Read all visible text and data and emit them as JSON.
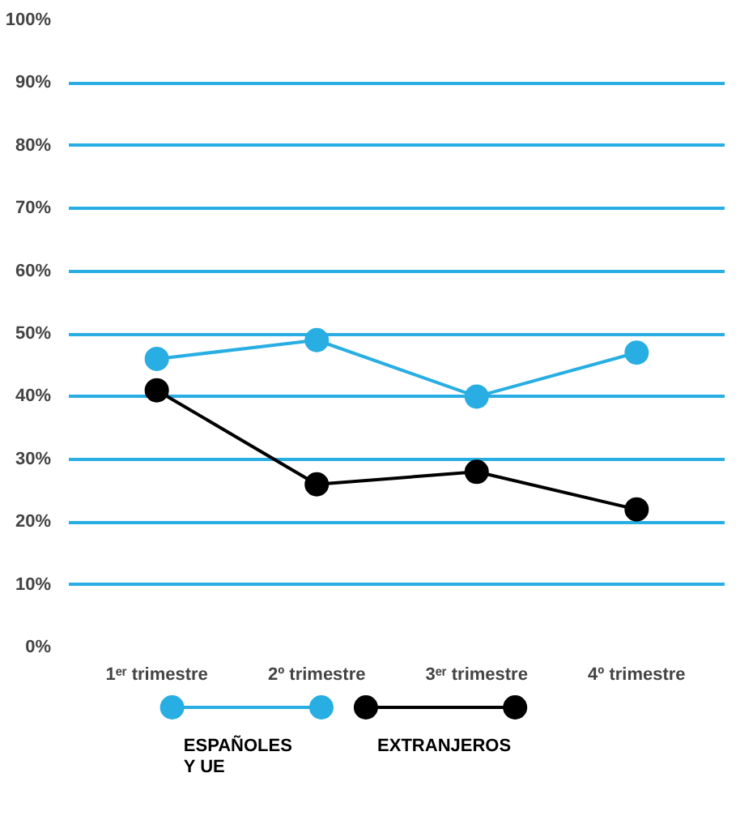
{
  "chart_data": {
    "type": "line",
    "categories": [
      "1ᵉʳ trimestre",
      "2º trimestre",
      "3ᵉʳ trimestre",
      "4º trimestre"
    ],
    "series": [
      {
        "name": "ESPAÑOLES\nY UE",
        "color": "#29aee3",
        "values": [
          46,
          49,
          40,
          47
        ]
      },
      {
        "name": "EXTRANJEROS",
        "color": "#000000",
        "values": [
          41,
          26,
          28,
          22
        ]
      }
    ],
    "ylim": [
      0,
      100
    ],
    "yticks": [
      {
        "value": 0,
        "label": "0%"
      },
      {
        "value": 10,
        "label": "10%"
      },
      {
        "value": 20,
        "label": "20%"
      },
      {
        "value": 30,
        "label": "30%"
      },
      {
        "value": 40,
        "label": "40%"
      },
      {
        "value": 50,
        "label": "50%"
      },
      {
        "value": 60,
        "label": "60%"
      },
      {
        "value": 70,
        "label": "70%"
      },
      {
        "value": 80,
        "label": "80%"
      },
      {
        "value": 90,
        "label": "90%"
      },
      {
        "value": 100,
        "label": "100%"
      }
    ],
    "grid": "y",
    "legend": "bottom",
    "marker": "circle",
    "line_style": "solid"
  }
}
